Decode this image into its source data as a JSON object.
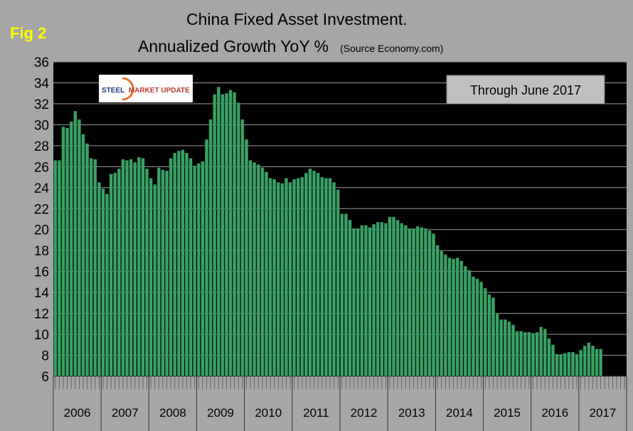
{
  "header": {
    "fig_label": "Fig 2",
    "title_line1": "China Fixed Asset Investment.",
    "title_line2": "Annualized Growth YoY %",
    "subtitle": "(Source Economy.com)"
  },
  "logo": {
    "word1": "STEEL",
    "word2": "MARKET UPDATE",
    "colors": {
      "steel": "#1f3a7a",
      "market": "#c0392b",
      "swoosh": "#e8732a"
    }
  },
  "annotation": "Through June 2017",
  "colors": {
    "plot_bg": "#000000",
    "bar": "#3aa265",
    "bar_edge": "#1d5e37",
    "page_bg": "#a6a6a6",
    "grid": "#9a9a9a"
  },
  "chart_data": {
    "type": "bar",
    "title": "China Fixed Asset Investment. Annualized Growth YoY %",
    "subtitle": "(Source Economy.com)",
    "xlabel": "",
    "ylabel": "",
    "ylim": [
      6,
      36
    ],
    "yticks": [
      6,
      8,
      10,
      12,
      14,
      16,
      18,
      20,
      22,
      24,
      26,
      28,
      30,
      32,
      34,
      36
    ],
    "grid": true,
    "years": [
      "2006",
      "2007",
      "2008",
      "2009",
      "2010",
      "2011",
      "2012",
      "2013",
      "2014",
      "2015",
      "2016",
      "2017"
    ],
    "values": [
      26.6,
      26.6,
      29.8,
      29.7,
      30.3,
      31.3,
      30.5,
      29.1,
      28.2,
      26.8,
      26.7,
      24.5,
      23.9,
      23.4,
      25.3,
      25.4,
      25.8,
      26.7,
      26.6,
      26.7,
      26.4,
      26.9,
      26.8,
      25.8,
      24.9,
      24.3,
      25.9,
      25.7,
      25.6,
      26.8,
      27.3,
      27.5,
      27.6,
      27.3,
      26.8,
      26.1,
      26.3,
      26.5,
      28.6,
      30.5,
      32.9,
      33.6,
      32.9,
      33.0,
      33.3,
      33.1,
      32.1,
      30.5,
      28.6,
      26.6,
      26.4,
      26.2,
      25.9,
      25.5,
      24.9,
      24.8,
      24.5,
      24.4,
      24.9,
      24.5,
      24.8,
      24.9,
      25.0,
      25.4,
      25.8,
      25.6,
      25.4,
      25.0,
      24.9,
      24.9,
      24.5,
      23.8,
      21.5,
      21.5,
      20.9,
      20.1,
      20.1,
      20.4,
      20.4,
      20.2,
      20.5,
      20.7,
      20.7,
      20.6,
      21.2,
      21.2,
      20.9,
      20.6,
      20.4,
      20.1,
      20.1,
      20.3,
      20.2,
      20.1,
      19.9,
      19.6,
      18.5,
      18.0,
      17.6,
      17.3,
      17.2,
      17.3,
      17.0,
      16.5,
      16.1,
      15.5,
      15.3,
      15.0,
      14.4,
      13.8,
      13.5,
      12.0,
      11.4,
      11.4,
      11.2,
      10.9,
      10.3,
      10.3,
      10.2,
      10.2,
      10.1,
      10.2,
      10.7,
      10.5,
      9.6,
      9.0,
      8.1,
      8.1,
      8.2,
      8.3,
      8.3,
      8.1,
      8.5,
      8.9,
      9.2,
      8.9,
      8.6,
      8.6
    ]
  }
}
